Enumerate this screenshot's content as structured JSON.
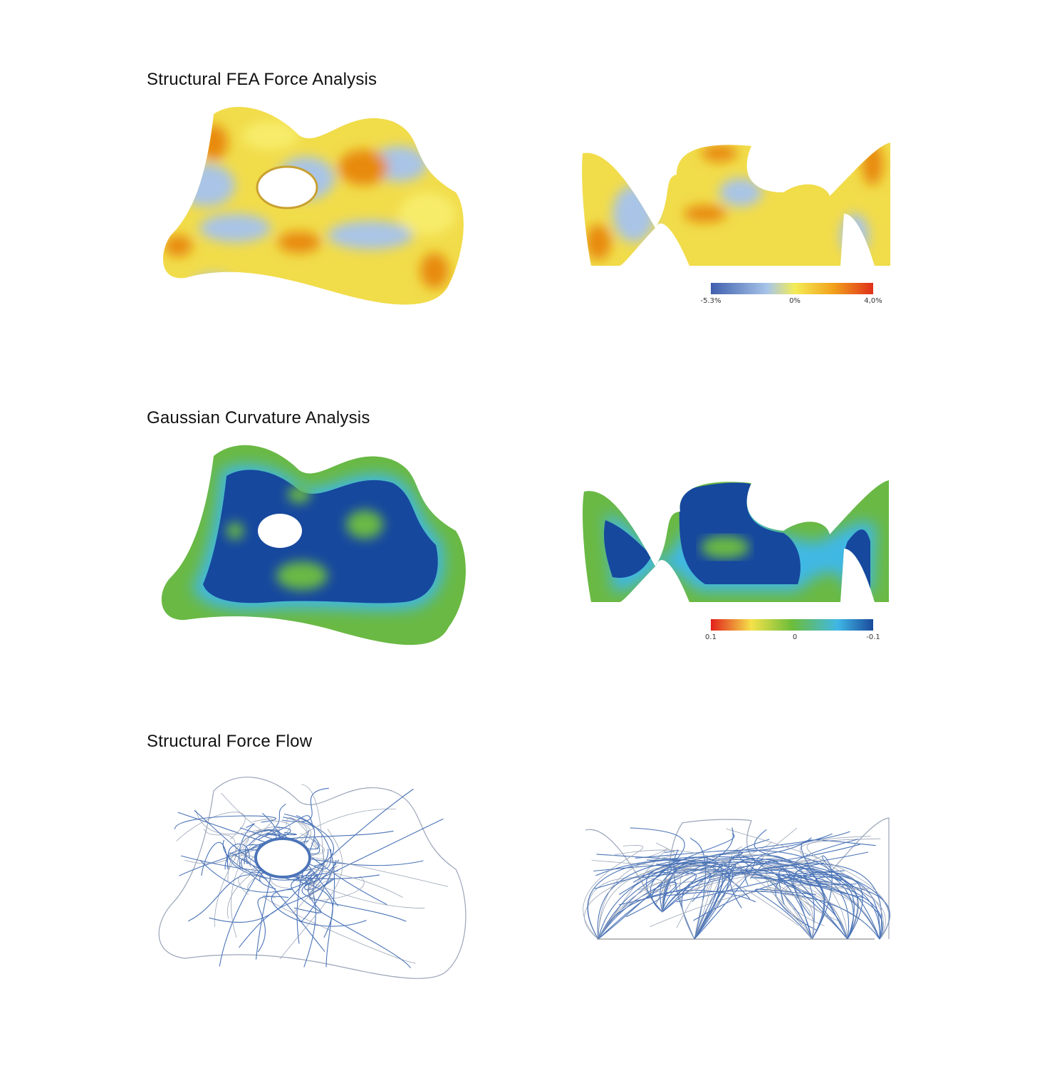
{
  "sections": [
    {
      "title": "Structural FEA Force Analysis",
      "legend": {
        "ticks": [
          "-5.3%",
          "0%",
          "4,0%"
        ],
        "colors": [
          "#3f5fae",
          "#a8c5e8",
          "#f4ec55",
          "#f2a31c",
          "#e0301b"
        ]
      },
      "fill_colors": {
        "base": "#f1dc4a",
        "blue": "#a9c4e6",
        "orange": "#e88a10",
        "light_yellow": "#f7ec6a"
      }
    },
    {
      "title": "Gaussian Curvature Analysis",
      "legend": {
        "ticks": [
          "0.1",
          "0",
          "-0.1"
        ],
        "colors": [
          "#e3201c",
          "#f4e24a",
          "#6cbd3a",
          "#3fb7e6",
          "#1a4a9b"
        ]
      },
      "fill_colors": {
        "base": "#16489e",
        "edge": "#6ab944",
        "glow": "#41b8e4"
      }
    },
    {
      "title": "Structural Force Flow",
      "line_colors": {
        "dense": "#4b74b8",
        "thin": "#9aa5b8"
      }
    }
  ]
}
